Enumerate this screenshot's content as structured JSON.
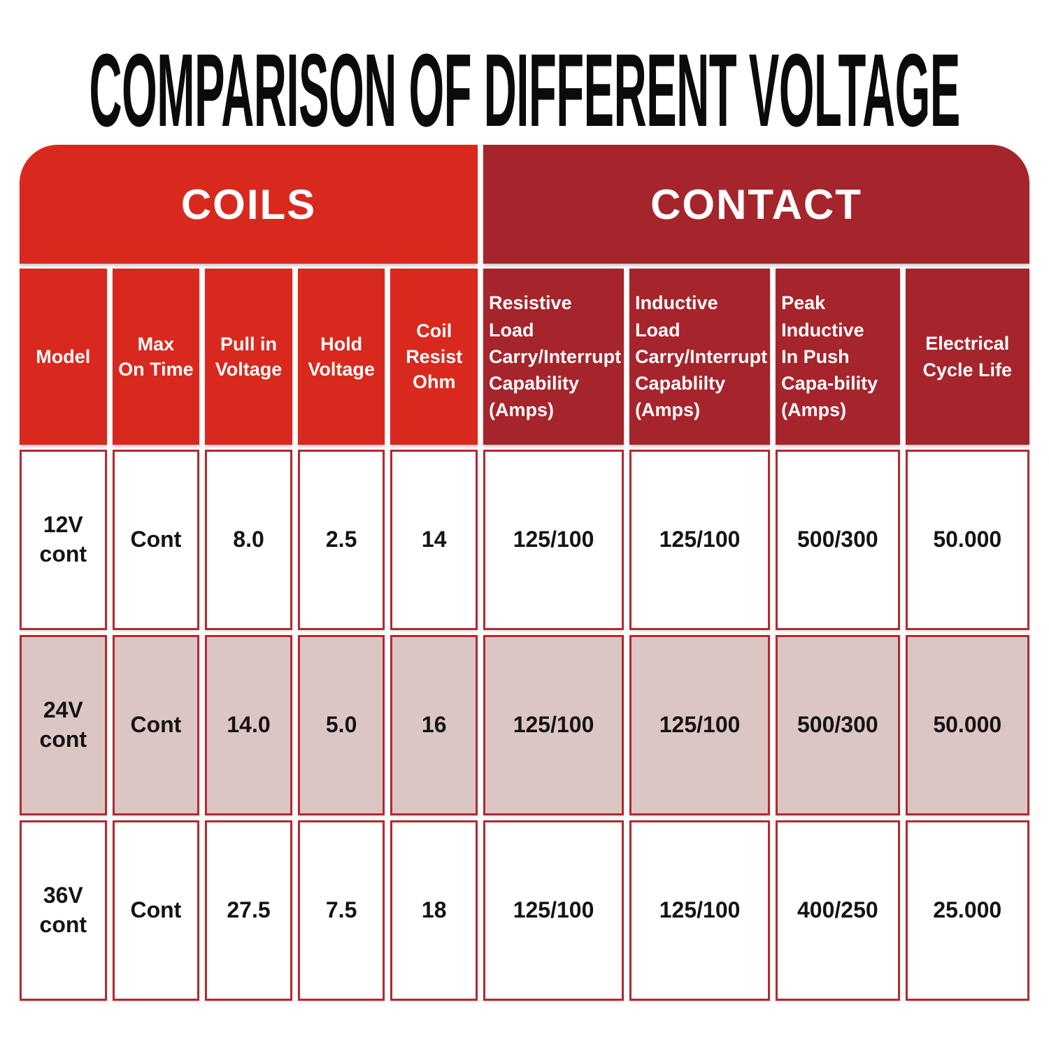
{
  "title": "COMPARISON OF DIFFERENT VOLTAGE",
  "colors": {
    "coils_red": "#d9281e",
    "contact_dark_red": "#a6242c",
    "row_shade_pink": "#dcc6c3",
    "cell_border": "#b12b31",
    "title_black": "#0b0b0b"
  },
  "table": {
    "header_groups": [
      {
        "label": "COILS"
      },
      {
        "label": "CONTACT"
      }
    ],
    "columns": [
      {
        "label": "Model"
      },
      {
        "label": "Max\nOn Time"
      },
      {
        "label": "Pull in\nVoltage"
      },
      {
        "label": "Hold\nVoltage"
      },
      {
        "label": "Coil\nResist\nOhm"
      },
      {
        "label": "Resistive Load\nCarry/Interrupt\nCapability\n(Amps)"
      },
      {
        "label": "Inductive Load\nCarry/Interrupt\nCapablilty\n(Amps)"
      },
      {
        "label": "Peak Inductive\nIn Push\nCapa-bility\n(Amps)"
      },
      {
        "label": "Electrical\nCycle Life"
      }
    ],
    "rows": [
      {
        "cells": [
          "12V\ncont",
          "Cont",
          "8.0",
          "2.5",
          "14",
          "125/100",
          "125/100",
          "500/300",
          "50.000"
        ]
      },
      {
        "cells": [
          "24V\ncont",
          "Cont",
          "14.0",
          "5.0",
          "16",
          "125/100",
          "125/100",
          "500/300",
          "50.000"
        ]
      },
      {
        "cells": [
          "36V\ncont",
          "Cont",
          "27.5",
          "7.5",
          "18",
          "125/100",
          "125/100",
          "400/250",
          "25.000"
        ]
      }
    ]
  },
  "chart_data": {
    "type": "table",
    "title": "COMPARISON OF DIFFERENT VOLTAGE",
    "column_groups": [
      {
        "name": "COILS",
        "column_indexes": [
          0,
          1,
          2,
          3,
          4
        ]
      },
      {
        "name": "CONTACT",
        "column_indexes": [
          5,
          6,
          7,
          8
        ]
      }
    ],
    "columns": [
      "Model",
      "Max On Time",
      "Pull in Voltage",
      "Hold Voltage",
      "Coil Resist Ohm",
      "Resistive Load Carry/Interrupt Capability (Amps)",
      "Inductive Load Carry/Interrupt Capablilty (Amps)",
      "Peak Inductive In Push Capa-bility (Amps)",
      "Electrical Cycle Life"
    ],
    "rows": [
      [
        "12V cont",
        "Cont",
        "8.0",
        "2.5",
        "14",
        "125/100",
        "125/100",
        "500/300",
        "50.000"
      ],
      [
        "24V cont",
        "Cont",
        "14.0",
        "5.0",
        "16",
        "125/100",
        "125/100",
        "500/300",
        "50.000"
      ],
      [
        "36V cont",
        "Cont",
        "27.5",
        "7.5",
        "18",
        "125/100",
        "125/100",
        "400/250",
        "25.000"
      ]
    ]
  }
}
